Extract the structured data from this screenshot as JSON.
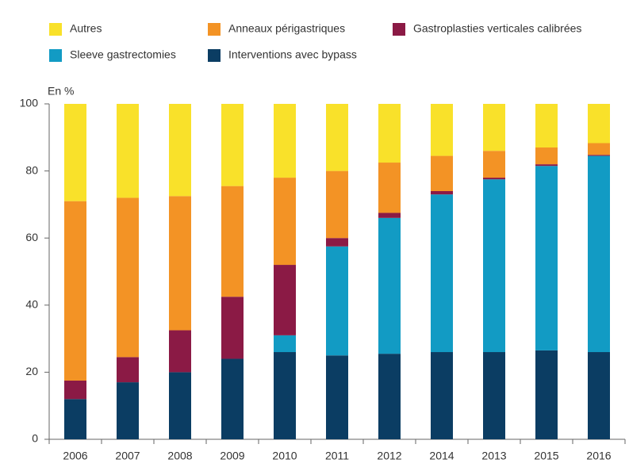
{
  "chart_data": {
    "type": "stacked_bar",
    "y_axis_label": "En %",
    "categories": [
      "2006",
      "2007",
      "2008",
      "2009",
      "2010",
      "2011",
      "2012",
      "2014",
      "2013",
      "2015",
      "2016"
    ],
    "series": [
      {
        "name": "Interventions avec bypass",
        "color": "#0b3d63",
        "values": [
          12,
          17,
          20,
          24,
          26,
          25,
          25.5,
          26,
          26,
          26.5,
          26
        ]
      },
      {
        "name": "Sleeve gastrectomies",
        "color": "#129bc4",
        "values": [
          0,
          0,
          0,
          0,
          5,
          32.5,
          40.5,
          47,
          51.5,
          55,
          58.5
        ]
      },
      {
        "name": "Gastroplasties verticales calibrées",
        "color": "#8b1a45",
        "values": [
          5.5,
          7.5,
          12.5,
          18.5,
          21,
          2.5,
          1.5,
          1,
          0.5,
          0.5,
          0.3
        ]
      },
      {
        "name": "Anneaux périgastriques",
        "color": "#f39325",
        "values": [
          53.5,
          47.5,
          40,
          33,
          26,
          20,
          15,
          10.5,
          8,
          5,
          3.5
        ]
      },
      {
        "name": "Autres",
        "color": "#f9e12a",
        "values": [
          29,
          28,
          27.5,
          24.5,
          22,
          20,
          17.5,
          15.5,
          14,
          13,
          11.7
        ]
      }
    ],
    "ylim": [
      0,
      100
    ],
    "yticks": [
      0,
      20,
      40,
      60,
      80,
      100
    ],
    "grid": false
  }
}
